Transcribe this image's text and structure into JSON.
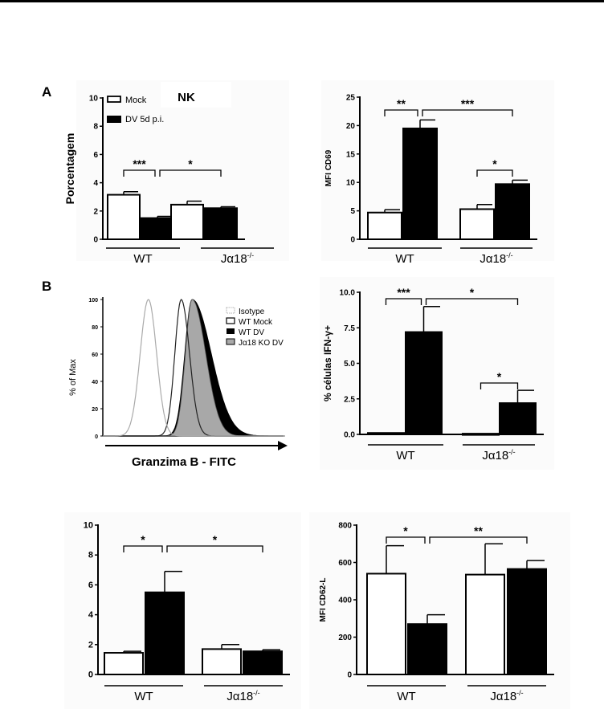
{
  "panel_labels": {
    "A": "A",
    "B": "B"
  },
  "chart_data": [
    {
      "id": "nk-percent",
      "type": "bar",
      "title": "NK",
      "ylabel": "Porcentagem",
      "ylim": [
        0,
        10
      ],
      "yticks": [
        "0",
        "2",
        "4",
        "6",
        "8",
        "10"
      ],
      "ytick_values": [
        0,
        2,
        4,
        6,
        8,
        10
      ],
      "groups": [
        "WT",
        "Jα18-/-"
      ],
      "group_sup": [
        "",
        "-/-"
      ],
      "group_base": [
        "WT",
        "Jα18"
      ],
      "legend": [
        {
          "label": "Mock",
          "fill": "#ffffff"
        },
        {
          "label": "DV 5d p.i.",
          "fill": "#000000"
        }
      ],
      "series": [
        {
          "name": "Mock",
          "values": [
            3.15,
            2.45
          ],
          "errors": [
            0.22,
            0.25
          ]
        },
        {
          "name": "DV 5d p.i.",
          "values": [
            1.5,
            2.2
          ],
          "errors": [
            0.12,
            0.1
          ]
        }
      ],
      "significance": [
        {
          "label": "***",
          "from": "WT-Mock",
          "to": "WT-DV"
        },
        {
          "label": "*",
          "from": "WT-DV",
          "to": "KO-DV"
        }
      ]
    },
    {
      "id": "mfi-cd69",
      "type": "bar",
      "title": "",
      "ylabel": "MFI CD69",
      "ylim": [
        0,
        25
      ],
      "yticks": [
        "0",
        "5",
        "10",
        "15",
        "20",
        "25"
      ],
      "ytick_values": [
        0,
        5,
        10,
        15,
        20,
        25
      ],
      "groups": [
        "WT",
        "Jα18-/-"
      ],
      "group_sup": [
        "",
        "-/-"
      ],
      "group_base": [
        "WT",
        "Jα18"
      ],
      "series": [
        {
          "name": "Mock",
          "values": [
            4.7,
            5.3
          ],
          "errors": [
            0.5,
            0.8
          ]
        },
        {
          "name": "DV 5d p.i.",
          "values": [
            19.5,
            9.7
          ],
          "errors": [
            1.5,
            0.7
          ]
        }
      ],
      "significance": [
        {
          "label": "**",
          "from": "WT-Mock",
          "to": "WT-DV"
        },
        {
          "label": "***",
          "from": "WT-DV",
          "to": "KO-DV"
        },
        {
          "label": "*",
          "from": "KO-Mock",
          "to": "KO-DV"
        }
      ]
    },
    {
      "id": "granzyme-histogram",
      "type": "line",
      "xlabel": "Granzima B - FITC",
      "ylabel": "% of Max",
      "ylim": [
        0,
        100
      ],
      "yticks": [
        "0",
        "20",
        "40",
        "60",
        "80",
        "100"
      ],
      "ytick_values": [
        0,
        20,
        40,
        60,
        80,
        100
      ],
      "legend": [
        {
          "label": "Isotype",
          "style": "dotted"
        },
        {
          "label": "WT Mock",
          "style": "open"
        },
        {
          "label": "WT DV",
          "style": "black"
        },
        {
          "label": "Jα18 KO DV",
          "style": "gray"
        }
      ],
      "series": [
        {
          "name": "Isotype",
          "peak_x": 0.25,
          "width": 0.045,
          "skew": 1.0,
          "color": "#aaaaaa"
        },
        {
          "name": "WT Mock",
          "peak_x": 0.43,
          "width": 0.035,
          "skew": 1.3,
          "color": "#222222"
        },
        {
          "name": "WT DV",
          "peak_x": 0.49,
          "width": 0.04,
          "skew": 2.6,
          "color": "#000000"
        },
        {
          "name": "Jα18 KO DV",
          "peak_x": 0.49,
          "width": 0.037,
          "skew": 2.0,
          "color": "#a8a8a8"
        }
      ]
    },
    {
      "id": "ifn-gamma",
      "type": "bar",
      "title": "",
      "ylabel": "% células IFN-γ+",
      "ylim": [
        0,
        10
      ],
      "yticks": [
        "0.0",
        "2.5",
        "5.0",
        "7.5",
        "10.0"
      ],
      "ytick_values": [
        0,
        2.5,
        5,
        7.5,
        10
      ],
      "groups": [
        "WT",
        "Jα18-/-"
      ],
      "group_sup": [
        "",
        "-/-"
      ],
      "group_base": [
        "WT",
        "Jα18"
      ],
      "series": [
        {
          "name": "Mock",
          "values": [
            0.1,
            0.05
          ],
          "errors": [
            0,
            0
          ]
        },
        {
          "name": "DV 5d p.i.",
          "values": [
            7.2,
            2.2
          ],
          "errors": [
            1.8,
            0.9
          ]
        }
      ],
      "significance": [
        {
          "label": "***",
          "from": "WT-Mock",
          "to": "WT-DV"
        },
        {
          "label": "*",
          "from": "WT-DV",
          "to": "KO-DV"
        },
        {
          "label": "*",
          "from": "KO-Mock",
          "to": "KO-DV"
        }
      ]
    },
    {
      "id": "unlabeled-percent",
      "type": "bar",
      "title": "",
      "ylabel": "",
      "ylim": [
        0,
        10
      ],
      "yticks": [
        "0",
        "2",
        "4",
        "6",
        "8",
        "10"
      ],
      "ytick_values": [
        0,
        2,
        4,
        6,
        8,
        10
      ],
      "groups": [
        "WT",
        "Jα18-/-"
      ],
      "group_sup": [
        "",
        "-/-"
      ],
      "group_base": [
        "WT",
        "Jα18"
      ],
      "series": [
        {
          "name": "Mock",
          "values": [
            1.45,
            1.7
          ],
          "errors": [
            0.1,
            0.3
          ]
        },
        {
          "name": "DV 5d p.i.",
          "values": [
            5.5,
            1.55
          ],
          "errors": [
            1.4,
            0.1
          ]
        }
      ],
      "significance": [
        {
          "label": "*",
          "from": "WT-Mock",
          "to": "WT-DV"
        },
        {
          "label": "*",
          "from": "WT-DV",
          "to": "KO-DV"
        }
      ]
    },
    {
      "id": "mfi-cd62l",
      "type": "bar",
      "title": "",
      "ylabel": "MFI CD62-L",
      "ylim": [
        0,
        800
      ],
      "yticks": [
        "0",
        "200",
        "400",
        "600",
        "800"
      ],
      "ytick_values": [
        0,
        200,
        400,
        600,
        800
      ],
      "groups": [
        "WT",
        "Jα18-/-"
      ],
      "group_sup": [
        "",
        "-/-"
      ],
      "group_base": [
        "WT",
        "Jα18"
      ],
      "series": [
        {
          "name": "Mock",
          "values": [
            540,
            535
          ],
          "errors": [
            150,
            165
          ]
        },
        {
          "name": "DV 5d p.i.",
          "values": [
            270,
            565
          ],
          "errors": [
            50,
            45
          ]
        }
      ],
      "significance": [
        {
          "label": "*",
          "from": "WT-Mock",
          "to": "WT-DV"
        },
        {
          "label": "**",
          "from": "WT-DV",
          "to": "KO-DV"
        }
      ]
    }
  ]
}
